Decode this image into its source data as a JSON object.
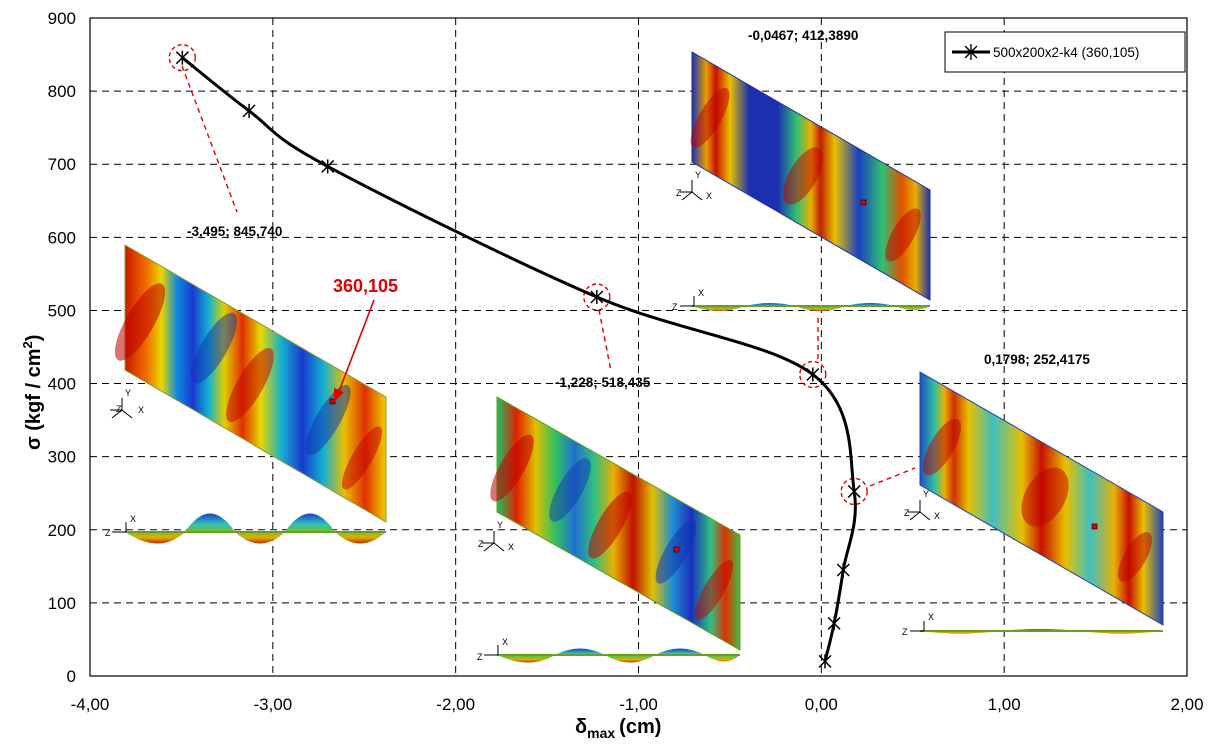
{
  "chart_data": {
    "type": "line",
    "xlabel": "δ",
    "xlabel_sub": "max",
    "xlabel_unit": "(cm)",
    "ylabel": "σ (kgf / cm",
    "ylabel_sup": "2",
    "ylabel_end": ")",
    "xlim": [
      -4.0,
      2.0
    ],
    "ylim": [
      0,
      900
    ],
    "x_ticks": [
      {
        "value": -4.0,
        "label": "-4,00"
      },
      {
        "value": -3.0,
        "label": "-3,00"
      },
      {
        "value": -2.0,
        "label": "-2,00"
      },
      {
        "value": -1.0,
        "label": "-1,00"
      },
      {
        "value": 0.0,
        "label": "0,00"
      },
      {
        "value": 1.0,
        "label": "1,00"
      },
      {
        "value": 2.0,
        "label": "2,00"
      }
    ],
    "y_ticks": [
      {
        "value": 0,
        "label": "0"
      },
      {
        "value": 100,
        "label": "100"
      },
      {
        "value": 200,
        "label": "200"
      },
      {
        "value": 300,
        "label": "300"
      },
      {
        "value": 400,
        "label": "400"
      },
      {
        "value": 500,
        "label": "500"
      },
      {
        "value": 600,
        "label": "600"
      },
      {
        "value": 700,
        "label": "700"
      },
      {
        "value": 800,
        "label": "800"
      },
      {
        "value": 900,
        "label": "900"
      }
    ],
    "grid": true,
    "legend_position": "top-right",
    "series": [
      {
        "name": "500x200x2-k4 (360,105)",
        "color": "#000000",
        "marker": "asterisk",
        "points": [
          {
            "x": 0.02,
            "y": 20
          },
          {
            "x": 0.07,
            "y": 72
          },
          {
            "x": 0.12,
            "y": 145
          },
          {
            "x": 0.1798,
            "y": 252.4
          },
          {
            "x": -0.0467,
            "y": 412.4
          },
          {
            "x": -1.228,
            "y": 518.4
          },
          {
            "x": -2.7,
            "y": 697
          },
          {
            "x": -3.13,
            "y": 773
          },
          {
            "x": -3.495,
            "y": 845.7
          }
        ]
      }
    ],
    "annotations": [
      {
        "text": "-3,495; 845,740",
        "x": -3.495,
        "y": 845.74
      },
      {
        "text": "-1,228; 518,435",
        "x": -1.228,
        "y": 518.435
      },
      {
        "text": "-0,0467; 412,3890",
        "x": -0.0467,
        "y": 412.389
      },
      {
        "text": "0,1798; 252,4175",
        "x": 0.1798,
        "y": 252.4175
      },
      {
        "text": "360,105",
        "x": -2.7,
        "y": 375
      }
    ]
  },
  "colors": {
    "curve": "#000000",
    "highlight": "#e00000",
    "grid": "#000000"
  }
}
